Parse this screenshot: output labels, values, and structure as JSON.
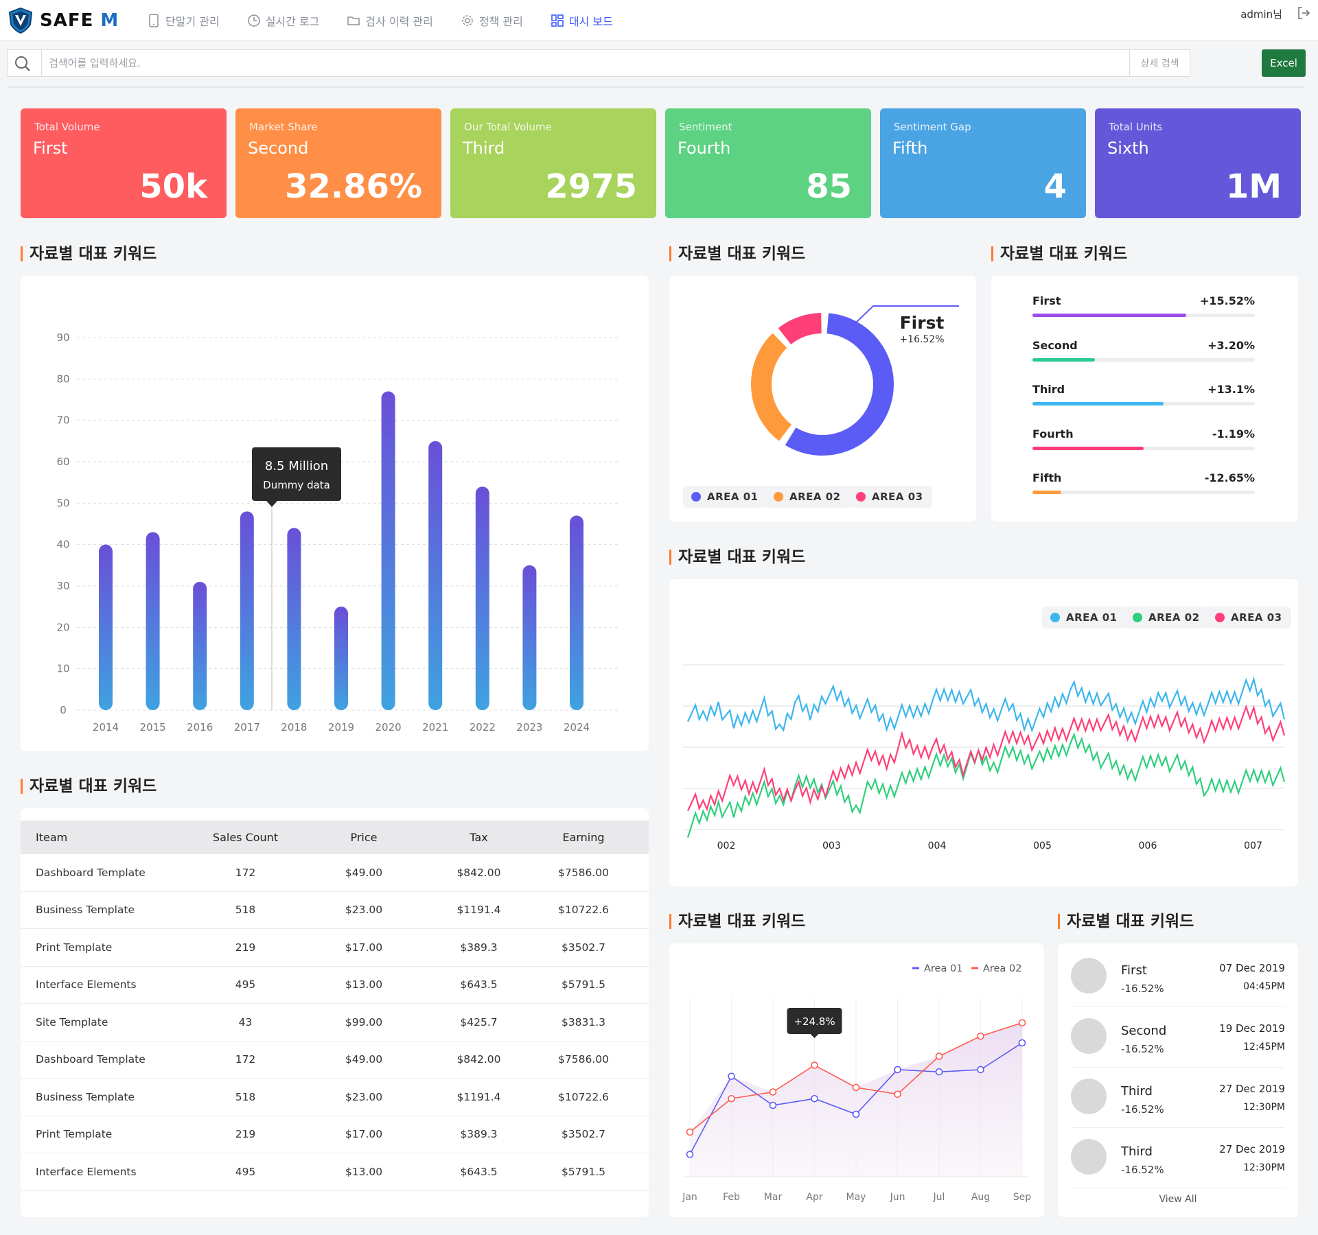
{
  "app": {
    "logo": "SAFE M",
    "admin": "admin님"
  },
  "nav": [
    {
      "label": "단말기 관리",
      "icon": "phone-icon",
      "active": false
    },
    {
      "label": "실시간 로그",
      "icon": "clock-icon",
      "active": false
    },
    {
      "label": "검사 이력 관리",
      "icon": "folder-icon",
      "active": false
    },
    {
      "label": "정책 관리",
      "icon": "gear-icon",
      "active": false
    },
    {
      "label": "대시 보드",
      "icon": "dashboard-icon",
      "active": true
    }
  ],
  "search": {
    "placeholder": "검색어를 입력하세요.",
    "advanced": "상세 검색",
    "excel": "Excel"
  },
  "kpis": [
    {
      "label": "Total Volume",
      "sub": "First",
      "value": "50k",
      "color": "#ff5c60"
    },
    {
      "label": "Market Share",
      "sub": "Second",
      "value": "32.86%",
      "color": "#ff8f47"
    },
    {
      "label": "Our Total Volume",
      "sub": "Third",
      "value": "2975",
      "color": "#a8d35c"
    },
    {
      "label": "Sentiment",
      "sub": "Fourth",
      "value": "85",
      "color": "#5dd282"
    },
    {
      "label": "Sentiment Gap",
      "sub": "Fifth",
      "value": "4",
      "color": "#4aa3e3"
    },
    {
      "label": "Total Units",
      "sub": "Sixth",
      "value": "1M",
      "color": "#6457d9"
    }
  ],
  "section_title": "자료별 대표 키워드",
  "bar_chart": {
    "tooltip_title": "8.5 Million",
    "tooltip_sub": "Dummy data",
    "chart_data": {
      "type": "bar",
      "categories": [
        "2014",
        "2015",
        "2016",
        "2017",
        "2018",
        "2019",
        "2020",
        "2021",
        "2022",
        "2023",
        "2024"
      ],
      "values": [
        40,
        43,
        31,
        48,
        44,
        25,
        77,
        65,
        54,
        35,
        47
      ],
      "yticks": [
        0,
        10,
        20,
        30,
        40,
        50,
        60,
        70,
        80,
        90
      ],
      "ylim": [
        0,
        90
      ],
      "grid": true
    }
  },
  "donut": {
    "label": "First",
    "pct": "+16.52%",
    "chart_data": {
      "type": "pie",
      "series": [
        {
          "name": "AREA 01",
          "value": 59,
          "color": "#5b5cf6"
        },
        {
          "name": "AREA 02",
          "value": 29,
          "color": "#ff9a3c"
        },
        {
          "name": "AREA 03",
          "value": 12,
          "color": "#ff3f78"
        }
      ]
    },
    "legend": [
      {
        "name": "AREA 01",
        "color": "#5b5cf6"
      },
      {
        "name": "AREA 02",
        "color": "#ff9a3c"
      },
      {
        "name": "AREA 03",
        "color": "#ff3f78"
      }
    ]
  },
  "progress": [
    {
      "name": "First",
      "pct": "+15.52%",
      "fill": 0.69,
      "color": "#9b4ee8"
    },
    {
      "name": "Second",
      "pct": "+3.20%",
      "fill": 0.28,
      "color": "#2cc99a"
    },
    {
      "name": "Third",
      "pct": "+13.1%",
      "fill": 0.59,
      "color": "#3cb6ee"
    },
    {
      "name": "Fourth",
      "pct": "-1.19%",
      "fill": 0.5,
      "color": "#ff3f78"
    },
    {
      "name": "Fifth",
      "pct": "-12.65%",
      "fill": 0.13,
      "color": "#ff9a3c"
    }
  ],
  "multi_line": {
    "legend": [
      {
        "name": "AREA 01",
        "color": "#3cb6ee"
      },
      {
        "name": "AREA 02",
        "color": "#2fcf7d"
      },
      {
        "name": "AREA 03",
        "color": "#ff3f78"
      }
    ],
    "chart_data": {
      "type": "line",
      "x_ticks": [
        "002",
        "003",
        "004",
        "005",
        "006",
        "007"
      ],
      "series": [
        {
          "name": "AREA 01",
          "color": "#3cb6ee",
          "values": [
            70,
            66,
            74,
            62,
            68,
            72,
            60,
            75,
            68,
            80,
            77,
            72,
            71,
            64,
            68,
            70,
            76,
            79,
            80,
            73,
            70,
            72,
            64,
            66,
            75,
            82,
            78,
            79,
            70,
            68,
            71,
            80,
            76,
            72,
            74,
            78,
            80,
            84,
            75,
            67
          ]
        },
        {
          "name": "AREA 02",
          "color": "#2fcf7d",
          "values": [
            5,
            10,
            18,
            12,
            22,
            25,
            20,
            28,
            30,
            27,
            24,
            16,
            28,
            26,
            30,
            35,
            40,
            42,
            38,
            44,
            40,
            46,
            45,
            42,
            48,
            52,
            50,
            44,
            38,
            36,
            40,
            44,
            40,
            36,
            26,
            28,
            30,
            33,
            35,
            32
          ]
        },
        {
          "name": "AREA 03",
          "color": "#ff3f78",
          "values": [
            20,
            16,
            24,
            30,
            28,
            32,
            24,
            26,
            22,
            28,
            34,
            40,
            44,
            42,
            52,
            48,
            50,
            46,
            40,
            44,
            50,
            54,
            56,
            52,
            58,
            60,
            62,
            65,
            60,
            58,
            62,
            66,
            64,
            60,
            58,
            63,
            66,
            68,
            60,
            58
          ]
        }
      ]
    }
  },
  "table": {
    "headers": [
      "Iteam",
      "Sales Count",
      "Price",
      "Tax",
      "Earning"
    ],
    "rows": [
      [
        "Dashboard Template",
        "172",
        "$49.00",
        "$842.00",
        "$7586.00"
      ],
      [
        "Business Template",
        "518",
        "$23.00",
        "$1191.4",
        "$10722.6"
      ],
      [
        "Print Template",
        "219",
        "$17.00",
        "$389.3",
        "$3502.7"
      ],
      [
        "Interface Elements",
        "495",
        "$13.00",
        "$643.5",
        "$5791.5"
      ],
      [
        "Site Template",
        "43",
        "$99.00",
        "$425.7",
        "$3831.3"
      ],
      [
        "Dashboard Template",
        "172",
        "$49.00",
        "$842.00",
        "$7586.00"
      ],
      [
        "Business Template",
        "518",
        "$23.00",
        "$1191.4",
        "$10722.6"
      ],
      [
        "Print Template",
        "219",
        "$17.00",
        "$389.3",
        "$3502.7"
      ],
      [
        "Interface Elements",
        "495",
        "$13.00",
        "$643.5",
        "$5791.5"
      ]
    ]
  },
  "area_chart": {
    "tooltip": "+24.8%",
    "legend": [
      {
        "name": "Area 01",
        "color": "#5b5cf6"
      },
      {
        "name": "Area 02",
        "color": "#ff5a4e"
      }
    ],
    "chart_data": {
      "type": "line",
      "categories": [
        "Jan",
        "Feb",
        "Mar",
        "Apr",
        "May",
        "Jun",
        "Jul",
        "Aug",
        "Sep"
      ],
      "series": [
        {
          "name": "Area 01",
          "color": "#5b5cf6",
          "values": [
            10,
            45,
            32,
            35,
            28,
            48,
            47,
            48,
            60
          ]
        },
        {
          "name": "Area 02",
          "color": "#ff5a4e",
          "values": [
            20,
            35,
            38,
            50,
            40,
            37,
            54,
            63,
            69
          ]
        }
      ],
      "ylim": [
        0,
        80
      ]
    }
  },
  "activity": {
    "items": [
      {
        "name": "First",
        "pct": "-16.52%",
        "date": "07 Dec 2019",
        "time": "04:45PM"
      },
      {
        "name": "Second",
        "pct": "-16.52%",
        "date": "19 Dec 2019",
        "time": "12:45PM"
      },
      {
        "name": "Third",
        "pct": "-16.52%",
        "date": "27 Dec 2019",
        "time": "12:30PM"
      },
      {
        "name": "Third",
        "pct": "-16.52%",
        "date": "27 Dec 2019",
        "time": "12:30PM"
      }
    ],
    "view_all": "View All"
  }
}
